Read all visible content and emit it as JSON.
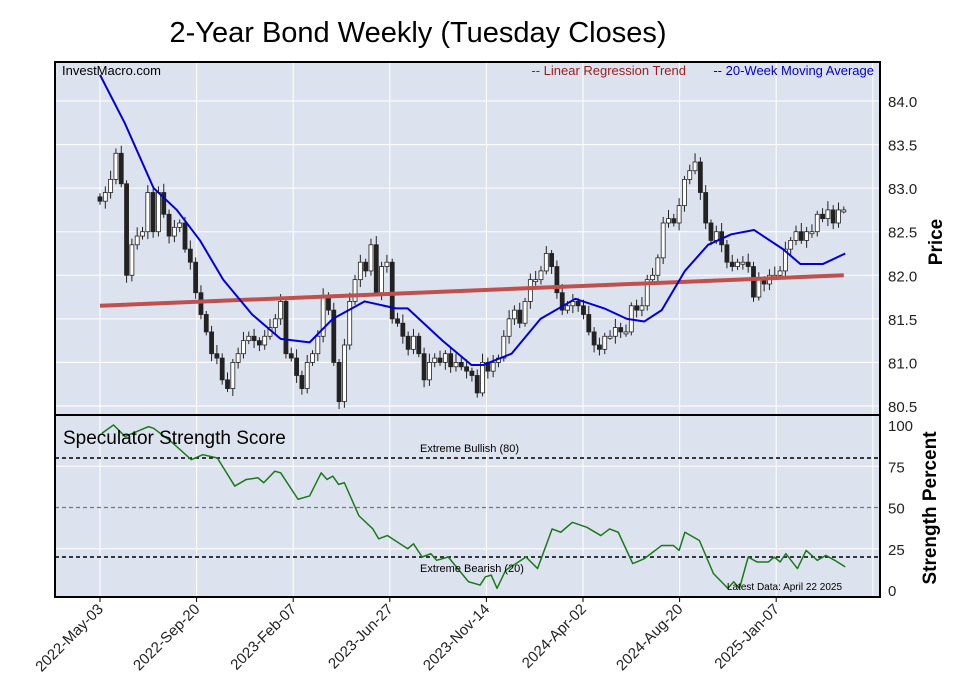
{
  "chart_data": {
    "type": "line",
    "title": "2-Year Bond Weekly (Tuesday Closes)",
    "watermark": "InvestMacro.com",
    "legend": {
      "placement": "top-right",
      "regression_label": "-- Linear Regression Trend",
      "ma_label": "-- 20-Week Moving Average"
    },
    "colors": {
      "candle_up": "#ffffff",
      "candle_down": "#222222",
      "ma": "#0000dd",
      "regression": "#c0504d",
      "strength": "#1a7a1a",
      "background": "#dde3ee"
    },
    "price_panel": {
      "ylabel": "Price",
      "ylim": [
        80.4,
        84.4
      ],
      "yticks": [
        "80.5",
        "81.0",
        "81.5",
        "82.0",
        "82.5",
        "83.0",
        "83.5",
        "84.0"
      ],
      "weeks_last": 154,
      "closes": [
        82.85,
        82.95,
        83.1,
        83.4,
        83.05,
        82.0,
        82.35,
        82.45,
        82.5,
        82.95,
        82.5,
        82.95,
        82.7,
        82.45,
        82.55,
        82.6,
        82.3,
        82.15,
        81.8,
        81.55,
        81.35,
        81.1,
        81.05,
        80.8,
        80.7,
        81.0,
        81.1,
        81.25,
        81.3,
        81.25,
        81.2,
        81.3,
        81.4,
        81.5,
        81.7,
        81.1,
        81.05,
        80.85,
        80.7,
        81.0,
        81.1,
        81.3,
        81.75,
        81.6,
        81.0,
        80.55,
        81.2,
        81.7,
        81.95,
        82.15,
        82.05,
        82.35,
        81.8,
        82.1,
        82.15,
        81.5,
        81.45,
        81.3,
        81.15,
        81.3,
        81.1,
        80.8,
        81.0,
        81.05,
        81.0,
        81.1,
        80.95,
        81.0,
        80.95,
        80.9,
        80.85,
        80.65,
        81.0,
        80.9,
        81.0,
        81.05,
        81.3,
        81.5,
        81.6,
        81.45,
        81.7,
        81.95,
        81.95,
        82.05,
        82.25,
        82.1,
        81.8,
        81.6,
        81.65,
        81.7,
        81.65,
        81.55,
        81.35,
        81.2,
        81.15,
        81.3,
        81.3,
        81.4,
        81.35,
        81.35,
        81.65,
        81.6,
        81.65,
        81.95,
        82.0,
        82.2,
        82.6,
        82.65,
        82.6,
        82.8,
        83.1,
        83.2,
        83.3,
        82.95,
        82.6,
        82.4,
        82.5,
        82.35,
        82.15,
        82.1,
        82.15,
        82.15,
        82.1,
        81.75,
        81.95,
        81.9,
        82.0,
        82.0,
        82.05,
        82.3,
        82.4,
        82.5,
        82.4,
        82.5,
        82.5,
        82.7,
        82.65,
        82.75,
        82.6,
        82.75,
        82.75
      ],
      "ma20": {
        "weeks": [
          0,
          5.1,
          11.1,
          15.9,
          20.7,
          25.5,
          31.5,
          37.4,
          43.4,
          48.2,
          54.8,
          61.3,
          63.7,
          70.9,
          76.9,
          79.3,
          85.2,
          91.2,
          98.4,
          104.4,
          109.1,
          112.7,
          116.3,
          121.1,
          125.9,
          130.7,
          135.4,
          141.4,
          145.0,
          149.7,
          154.3
        ],
        "values": [
          84.3,
          83.75,
          83.0,
          82.75,
          82.4,
          81.95,
          81.55,
          81.27,
          81.23,
          81.5,
          81.7,
          81.62,
          81.62,
          81.25,
          80.97,
          80.97,
          81.1,
          81.5,
          81.73,
          81.62,
          81.5,
          81.47,
          81.6,
          82.05,
          82.35,
          82.47,
          82.52,
          82.3,
          82.13,
          82.13,
          82.25
        ]
      },
      "regression": {
        "weeks": [
          0,
          154
        ],
        "values": [
          81.65,
          82.0
        ]
      }
    },
    "strength_panel": {
      "title": "Speculator Strength Score",
      "ylabel": "Strength Percent",
      "ylim": [
        0,
        100
      ],
      "yticks": [
        "0",
        "25",
        "50",
        "75",
        "100"
      ],
      "bullish_label": "Extreme Bullish (80)",
      "bearish_label": "Extreme Bearish (20)",
      "bullish_level": 80,
      "bearish_level": 20,
      "mid_level": 50,
      "latest_note": "Latest Data: April 22 2025",
      "weeks": [
        0.4,
        2.8,
        5.2,
        10,
        11.1,
        14.7,
        18.9,
        21.3,
        24.3,
        27.9,
        30.3,
        32.7,
        33.9,
        36.2,
        37.4,
        41,
        43.4,
        45.8,
        47,
        48.2,
        49.4,
        50.6,
        53.6,
        56.5,
        57.7,
        59.5,
        63.7,
        64.9,
        66.7,
        68.5,
        69.7,
        72.1,
        76.3,
        78.7,
        79.8,
        81,
        82.2,
        84,
        88.2,
        90.6,
        93.6,
        95.4,
        97.8,
        100.8,
        103.7,
        105.5,
        107.3,
        110.3,
        112.7,
        116.3,
        118.7,
        119.9,
        121.1,
        124.1,
        127,
        130,
        131.2,
        132.4,
        134.2,
        136,
        138.4,
        139.6,
        140.8,
        142,
        144.4,
        146.2,
        148.5,
        150.3,
        152.1,
        154.3
      ],
      "values": [
        95,
        100,
        93,
        99,
        98,
        90,
        79,
        82,
        80,
        63,
        67,
        68,
        65,
        72,
        71,
        55,
        57,
        71,
        67,
        69,
        64,
        65,
        45,
        37,
        31,
        33,
        25,
        28,
        20,
        22,
        18,
        20,
        5,
        3,
        8,
        9,
        1,
        12,
        20,
        13,
        37,
        35,
        41,
        38,
        33,
        37,
        35,
        16,
        19,
        27,
        27,
        24,
        35,
        30,
        10,
        1,
        5,
        1,
        20,
        17,
        17,
        20,
        17,
        22,
        13,
        24,
        18,
        21,
        18,
        14
      ]
    },
    "x_ticks": {
      "weeks": [
        0,
        20,
        40,
        60,
        80,
        100,
        120,
        140
      ],
      "labels": [
        "2022-May-03",
        "2022-Sep-20",
        "2023-Feb-07",
        "2023-Jun-27",
        "2023-Nov-14",
        "2024-Apr-02",
        "2024-Aug-20",
        "2025-Jan-07"
      ]
    }
  }
}
